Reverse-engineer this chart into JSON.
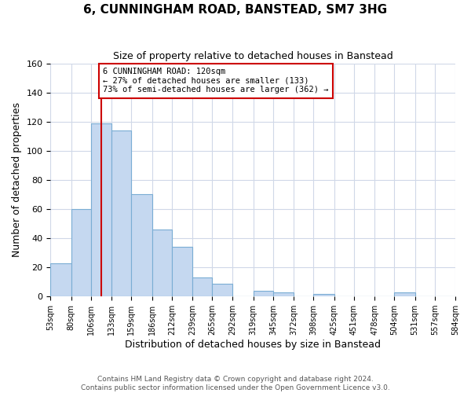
{
  "title": "6, CUNNINGHAM ROAD, BANSTEAD, SM7 3HG",
  "subtitle": "Size of property relative to detached houses in Banstead",
  "xlabel": "Distribution of detached houses by size in Banstead",
  "ylabel": "Number of detached properties",
  "bar_edges": [
    53,
    80,
    106,
    133,
    159,
    186,
    212,
    239,
    265,
    292,
    319,
    345,
    372,
    398,
    425,
    451,
    478,
    504,
    531,
    557,
    584
  ],
  "bar_heights": [
    23,
    60,
    119,
    114,
    70,
    46,
    34,
    13,
    9,
    0,
    4,
    3,
    0,
    2,
    0,
    0,
    0,
    3,
    0,
    0
  ],
  "bar_color": "#c5d8f0",
  "bar_edgecolor": "#7aadd4",
  "property_line_x": 120,
  "property_line_color": "#cc0000",
  "annotation_text": "6 CUNNINGHAM ROAD: 120sqm\n← 27% of detached houses are smaller (133)\n73% of semi-detached houses are larger (362) →",
  "annotation_box_edgecolor": "#cc0000",
  "annotation_box_facecolor": "#ffffff",
  "ylim": [
    0,
    160
  ],
  "yticks": [
    0,
    20,
    40,
    60,
    80,
    100,
    120,
    140,
    160
  ],
  "tick_labels": [
    "53sqm",
    "80sqm",
    "106sqm",
    "133sqm",
    "159sqm",
    "186sqm",
    "212sqm",
    "239sqm",
    "265sqm",
    "292sqm",
    "319sqm",
    "345sqm",
    "372sqm",
    "398sqm",
    "425sqm",
    "451sqm",
    "478sqm",
    "504sqm",
    "531sqm",
    "557sqm",
    "584sqm"
  ],
  "footer_text": "Contains HM Land Registry data © Crown copyright and database right 2024.\nContains public sector information licensed under the Open Government Licence v3.0.",
  "background_color": "#ffffff",
  "grid_color": "#d0d8e8"
}
